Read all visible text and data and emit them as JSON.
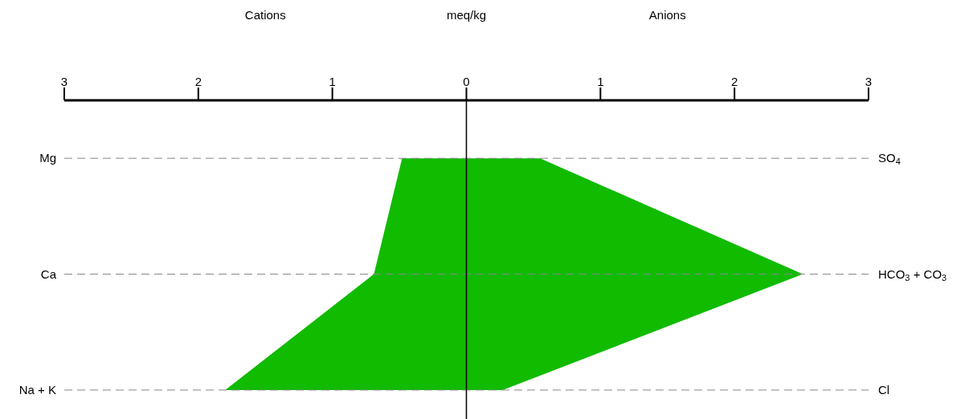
{
  "chart_data": {
    "type": "area",
    "orientation": "horizontal",
    "xlabel": "meq/kg",
    "annotations": [
      "Cations",
      "Anions"
    ],
    "categories": [
      "Mg",
      "Ca",
      "Na + K"
    ],
    "y2_categories": [
      "SO$_{4}$",
      "HCO$_{3}$ + CO$_{3}$",
      "Cl"
    ],
    "series": [
      {
        "color": "#11bb00",
        "values": [
          -0.48,
          -0.69,
          -1.8
        ]
      },
      {
        "color": "#11bb00",
        "values": [
          0.55,
          2.51,
          0.27
        ]
      }
    ],
    "xlim": [
      -3,
      3
    ],
    "xticks": [
      {
        "value": -3,
        "label": "3"
      },
      {
        "value": -2,
        "label": "2"
      },
      {
        "value": -1,
        "label": "1"
      },
      0,
      1,
      2,
      3
    ],
    "ref_lines": [
      {
        "axis": "x",
        "value": 0,
        "color": "#000000"
      }
    ],
    "grid": "y"
  }
}
